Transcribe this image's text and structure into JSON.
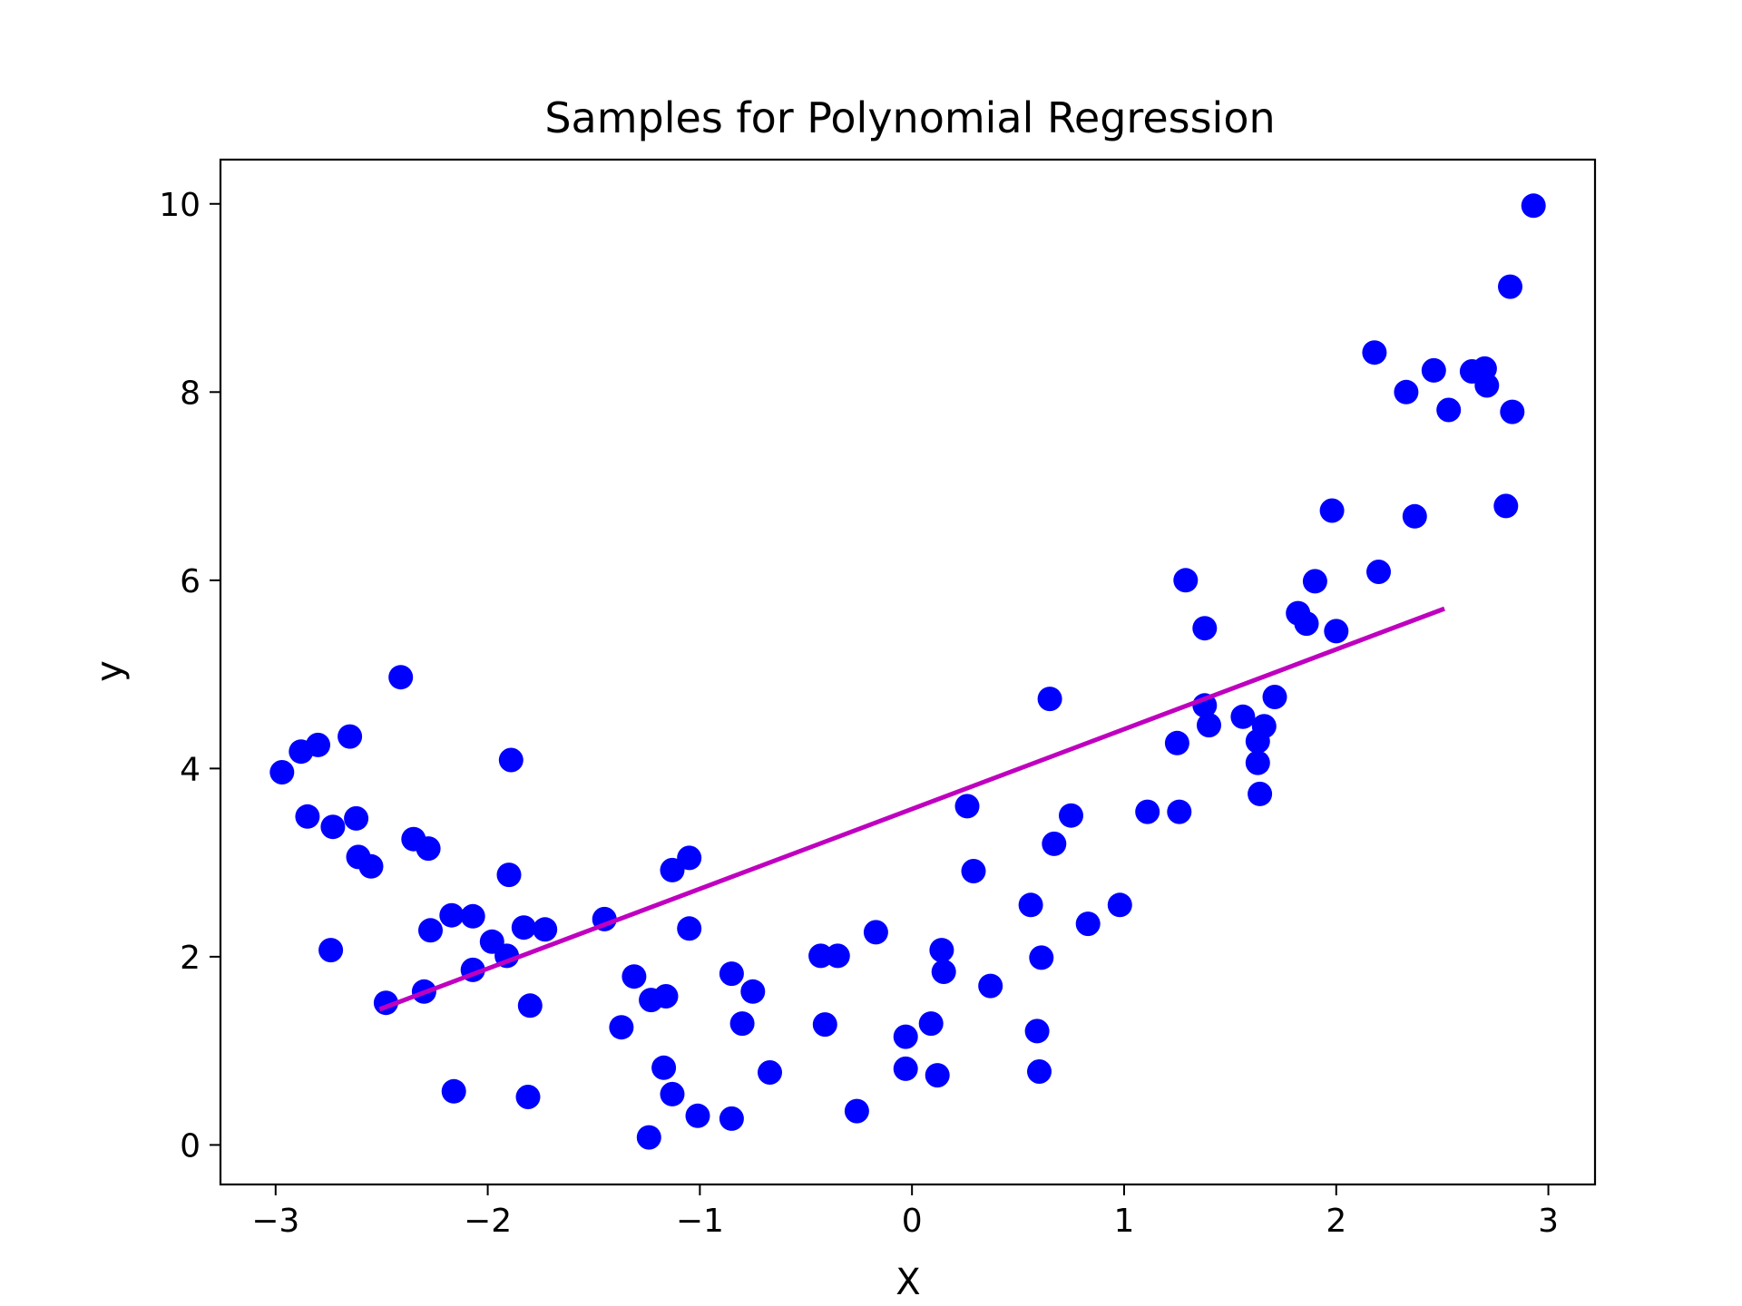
{
  "chart_data": {
    "type": "scatter",
    "title": "Samples for Polynomial Regression",
    "xlabel": "X",
    "ylabel": "y",
    "xlim": [
      -3.26,
      3.22
    ],
    "ylim": [
      -0.42,
      10.47
    ],
    "xticks": [
      -3,
      -2,
      -1,
      0,
      1,
      2,
      3
    ],
    "xtick_labels": [
      "−3",
      "−2",
      "−1",
      "0",
      "1",
      "2",
      "3"
    ],
    "yticks": [
      0,
      2,
      4,
      6,
      8,
      10
    ],
    "ytick_labels": [
      "0",
      "2",
      "4",
      "6",
      "8",
      "10"
    ],
    "grid": false,
    "series": [
      {
        "type": "scatter",
        "color": "#0000ff",
        "points": [
          [
            -2.97,
            3.96
          ],
          [
            -2.88,
            4.18
          ],
          [
            -2.85,
            3.49
          ],
          [
            -2.8,
            4.25
          ],
          [
            -2.73,
            3.38
          ],
          [
            -2.74,
            2.07
          ],
          [
            -2.65,
            4.34
          ],
          [
            -2.62,
            3.47
          ],
          [
            -2.61,
            3.06
          ],
          [
            -2.55,
            2.96
          ],
          [
            -2.48,
            1.51
          ],
          [
            -2.41,
            4.97
          ],
          [
            -2.35,
            3.25
          ],
          [
            -2.3,
            1.63
          ],
          [
            -2.28,
            3.15
          ],
          [
            -2.27,
            2.28
          ],
          [
            -2.17,
            2.44
          ],
          [
            -2.16,
            0.57
          ],
          [
            -2.07,
            2.43
          ],
          [
            -2.07,
            1.86
          ],
          [
            -1.98,
            2.16
          ],
          [
            -1.91,
            2.01
          ],
          [
            -1.9,
            2.87
          ],
          [
            -1.89,
            4.09
          ],
          [
            -1.83,
            2.31
          ],
          [
            -1.8,
            1.48
          ],
          [
            -1.81,
            0.51
          ],
          [
            -1.73,
            2.29
          ],
          [
            -1.45,
            2.4
          ],
          [
            -1.37,
            1.25
          ],
          [
            -1.31,
            1.79
          ],
          [
            -1.24,
            0.08
          ],
          [
            -1.23,
            1.54
          ],
          [
            -1.16,
            1.58
          ],
          [
            -1.17,
            0.82
          ],
          [
            -1.13,
            2.92
          ],
          [
            -1.13,
            0.54
          ],
          [
            -1.05,
            3.05
          ],
          [
            -1.05,
            2.3
          ],
          [
            -1.01,
            0.31
          ],
          [
            -0.85,
            1.82
          ],
          [
            -0.85,
            0.28
          ],
          [
            -0.8,
            1.29
          ],
          [
            -0.75,
            1.63
          ],
          [
            -0.67,
            0.77
          ],
          [
            -0.43,
            2.01
          ],
          [
            -0.41,
            1.28
          ],
          [
            -0.35,
            2.01
          ],
          [
            -0.26,
            0.36
          ],
          [
            -0.17,
            2.26
          ],
          [
            -0.03,
            1.15
          ],
          [
            -0.03,
            0.81
          ],
          [
            0.09,
            1.29
          ],
          [
            0.12,
            0.74
          ],
          [
            0.14,
            2.07
          ],
          [
            0.15,
            1.84
          ],
          [
            0.26,
            3.6
          ],
          [
            0.29,
            2.91
          ],
          [
            0.37,
            1.69
          ],
          [
            0.56,
            2.55
          ],
          [
            0.59,
            1.21
          ],
          [
            0.6,
            0.78
          ],
          [
            0.61,
            1.99
          ],
          [
            0.65,
            4.74
          ],
          [
            0.67,
            3.2
          ],
          [
            0.75,
            3.5
          ],
          [
            0.83,
            2.35
          ],
          [
            0.98,
            2.55
          ],
          [
            1.11,
            3.54
          ],
          [
            1.25,
            4.27
          ],
          [
            1.26,
            3.54
          ],
          [
            1.29,
            6.0
          ],
          [
            1.38,
            5.49
          ],
          [
            1.38,
            4.67
          ],
          [
            1.4,
            4.46
          ],
          [
            1.56,
            4.55
          ],
          [
            1.63,
            4.29
          ],
          [
            1.63,
            4.06
          ],
          [
            1.64,
            3.73
          ],
          [
            1.66,
            4.45
          ],
          [
            1.71,
            4.76
          ],
          [
            1.82,
            5.65
          ],
          [
            1.86,
            5.54
          ],
          [
            1.9,
            5.99
          ],
          [
            1.98,
            6.74
          ],
          [
            2.0,
            5.46
          ],
          [
            2.18,
            8.42
          ],
          [
            2.2,
            6.09
          ],
          [
            2.33,
            8.0
          ],
          [
            2.37,
            6.68
          ],
          [
            2.46,
            8.23
          ],
          [
            2.53,
            7.81
          ],
          [
            2.64,
            8.22
          ],
          [
            2.7,
            8.25
          ],
          [
            2.71,
            8.07
          ],
          [
            2.8,
            6.79
          ],
          [
            2.82,
            9.12
          ],
          [
            2.83,
            7.79
          ],
          [
            2.93,
            9.98
          ]
        ]
      },
      {
        "type": "line",
        "color": "#bf00bf",
        "points": [
          [
            -2.5,
            1.45
          ],
          [
            2.5,
            5.69
          ]
        ]
      }
    ]
  }
}
